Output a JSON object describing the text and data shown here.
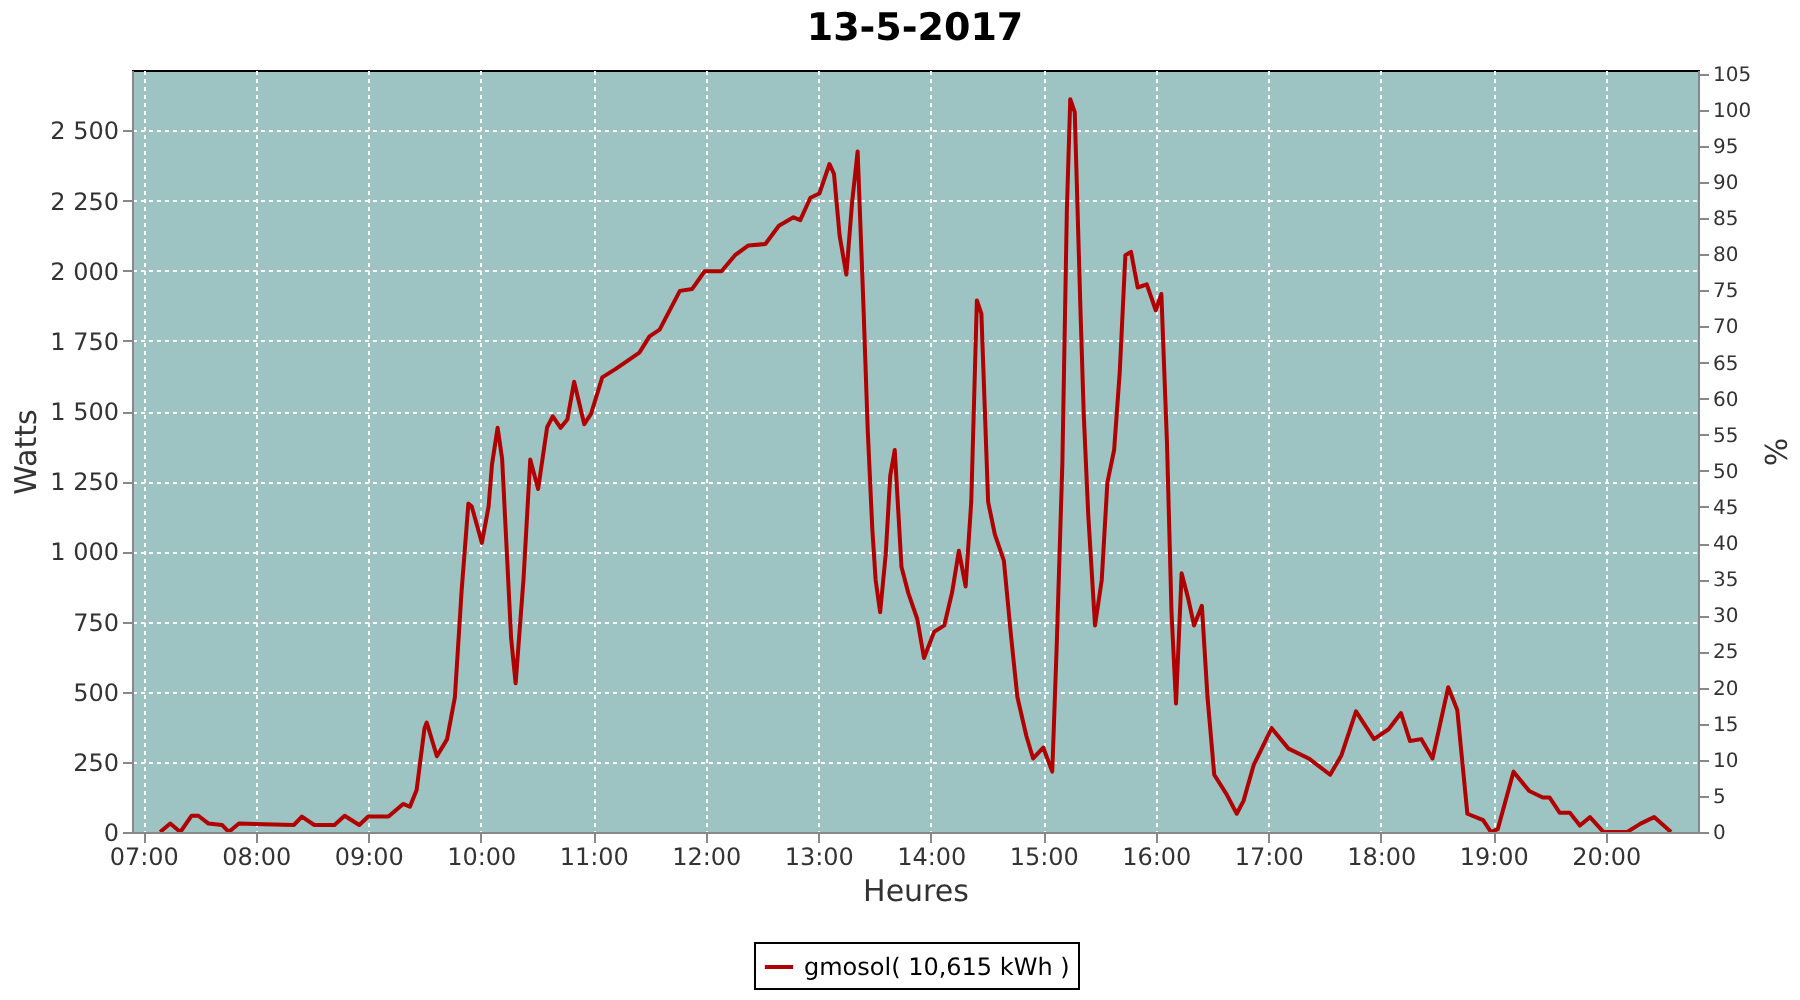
{
  "chart_data": {
    "type": "line",
    "title": "13-5-2017",
    "xlabel": "Heures",
    "ylabel": "Watts",
    "y2label": "%",
    "x": [
      7.15,
      7.24,
      7.33,
      7.43,
      7.49,
      7.58,
      7.7,
      7.76,
      7.85,
      8.34,
      8.41,
      8.52,
      8.7,
      8.79,
      8.92,
      9.0,
      9.18,
      9.31,
      9.37,
      9.43,
      9.5,
      9.52,
      9.61,
      9.7,
      9.77,
      9.83,
      9.89,
      9.92,
      10.01,
      10.07,
      10.1,
      10.15,
      10.19,
      10.27,
      10.31,
      10.38,
      10.44,
      10.51,
      10.59,
      10.64,
      10.71,
      10.77,
      10.83,
      10.92,
      10.98,
      11.08,
      11.2,
      11.41,
      11.5,
      11.59,
      11.77,
      11.88,
      11.99,
      12.14,
      12.26,
      12.38,
      12.53,
      12.65,
      12.78,
      12.84,
      12.93,
      13.01,
      13.1,
      13.14,
      13.19,
      13.25,
      13.3,
      13.35,
      13.4,
      13.44,
      13.48,
      13.51,
      13.55,
      13.6,
      13.64,
      13.68,
      13.74,
      13.8,
      13.88,
      13.94,
      14.03,
      14.12,
      14.19,
      14.25,
      14.31,
      14.36,
      14.41,
      14.45,
      14.51,
      14.57,
      14.65,
      14.71,
      14.77,
      14.85,
      14.91,
      15.0,
      15.08,
      15.12,
      15.17,
      15.21,
      15.24,
      15.28,
      15.33,
      15.36,
      15.4,
      15.46,
      15.52,
      15.57,
      15.63,
      15.68,
      15.73,
      15.78,
      15.84,
      15.92,
      16.0,
      16.05,
      16.1,
      16.14,
      16.18,
      16.23,
      16.29,
      16.34,
      16.41,
      16.46,
      16.52,
      16.63,
      16.72,
      16.78,
      16.87,
      17.03,
      17.18,
      17.36,
      17.55,
      17.65,
      17.78,
      17.94,
      18.07,
      18.18,
      18.26,
      18.36,
      18.46,
      18.6,
      18.68,
      18.77,
      18.91,
      18.98,
      19.04,
      19.18,
      19.32,
      19.44,
      19.5,
      19.59,
      19.68,
      19.77,
      19.86,
      19.98,
      20.19,
      20.31,
      20.43,
      20.58
    ],
    "series": [
      {
        "name": "gmosol( 10,615 kWh )",
        "color": "#b00000",
        "values": [
          0,
          30,
          0,
          58,
          58,
          30,
          25,
          0,
          30,
          25,
          55,
          25,
          25,
          58,
          25,
          55,
          55,
          100,
          90,
          150,
          370,
          390,
          270,
          330,
          480,
          860,
          1170,
          1160,
          1030,
          1160,
          1310,
          1440,
          1330,
          690,
          530,
          900,
          1327,
          1222,
          1442,
          1481,
          1440,
          1470,
          1604,
          1453,
          1490,
          1620,
          1650,
          1708,
          1766,
          1790,
          1928,
          1935,
          1998,
          1998,
          2055,
          2090,
          2095,
          2160,
          2190,
          2180,
          2260,
          2275,
          2380,
          2345,
          2125,
          1986,
          2240,
          2425,
          1894,
          1430,
          1083,
          898,
          783,
          990,
          1270,
          1361,
          944,
          852,
          759,
          620,
          713,
          736,
          854,
          1002,
          875,
          1176,
          1894,
          1847,
          1176,
          1060,
          967,
          713,
          481,
          342,
          262,
          301,
          215,
          667,
          1315,
          2218,
          2611,
          2565,
          1870,
          1488,
          1130,
          736,
          898,
          1245,
          1361,
          1639,
          2055,
          2067,
          1940,
          1951,
          1859,
          1917,
          1384,
          783,
          458,
          922,
          829,
          736,
          806,
          481,
          204,
          134,
          65,
          111,
          238,
          370,
          297,
          262,
          204,
          273,
          430,
          331,
          366,
          424,
          324,
          331,
          262,
          516,
          435,
          65,
          42,
          0,
          10,
          215,
          146,
          123,
          123,
          69,
          69,
          23,
          53,
          0,
          0,
          30,
          53,
          0
        ]
      }
    ],
    "xlim": [
      6.9,
      20.82
    ],
    "xticks": [
      {
        "value": 7,
        "label": "07:00"
      },
      {
        "value": 8,
        "label": "08:00"
      },
      {
        "value": 9,
        "label": "09:00"
      },
      {
        "value": 10,
        "label": "10:00"
      },
      {
        "value": 11,
        "label": "11:00"
      },
      {
        "value": 12,
        "label": "12:00"
      },
      {
        "value": 13,
        "label": "13:00"
      },
      {
        "value": 14,
        "label": "14:00"
      },
      {
        "value": 15,
        "label": "15:00"
      },
      {
        "value": 16,
        "label": "16:00"
      },
      {
        "value": 17,
        "label": "17:00"
      },
      {
        "value": 18,
        "label": "18:00"
      },
      {
        "value": 19,
        "label": "19:00"
      },
      {
        "value": 20,
        "label": "20:00"
      }
    ],
    "ylim": [
      0,
      2715
    ],
    "yticks": [
      0,
      250,
      500,
      750,
      {
        "value": 1000,
        "label": "1 000"
      },
      {
        "value": 1250,
        "label": "1 250"
      },
      {
        "value": 1500,
        "label": "1 500"
      },
      {
        "value": 1750,
        "label": "1 750"
      },
      {
        "value": 2000,
        "label": "2 000"
      },
      {
        "value": 2250,
        "label": "2 250"
      },
      {
        "value": 2500,
        "label": "2 500"
      }
    ],
    "y2lim": [
      0,
      105.5
    ],
    "y2ticks": [
      0,
      5,
      10,
      15,
      20,
      25,
      30,
      35,
      40,
      45,
      50,
      55,
      60,
      65,
      70,
      75,
      80,
      85,
      90,
      95,
      100,
      105
    ],
    "grid": true,
    "legend": "bottom"
  }
}
